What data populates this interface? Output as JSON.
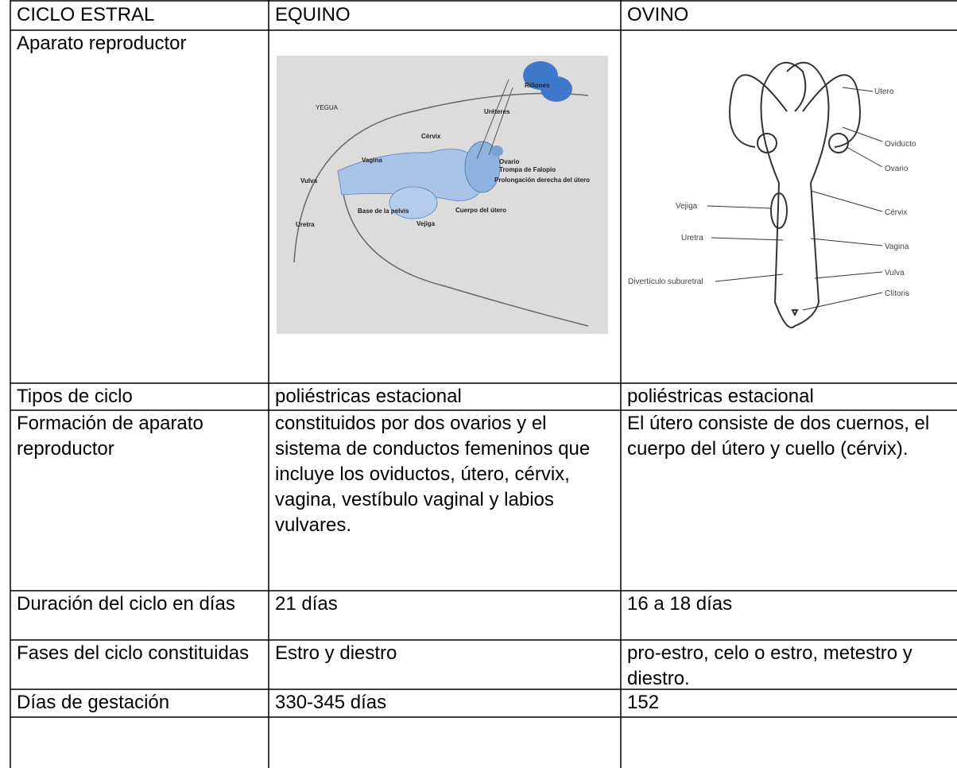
{
  "table": {
    "header": [
      "CICLO ESTRAL",
      "EQUINO",
      "OVINO"
    ],
    "rows": [
      [
        "Aparato reproductor"
      ],
      [
        "Tipos de ciclo",
        "poliéstricas estacional",
        "poliéstricas estacional"
      ],
      [
        "Formación de aparato reproductor",
        "constituidos por dos ovarios y el sistema de conductos femeninos que incluye los oviductos, útero, cérvix, vagina, vestíbulo vaginal y labios vulvares.",
        "El útero consiste de dos cuernos, el cuerpo del útero y cuello (cérvix)."
      ],
      [
        "Duración del ciclo en días",
        "21 días",
        "16 a 18 días"
      ],
      [
        "Fases del ciclo constituidas",
        "Estro y diestro",
        "pro-estro, celo o estro, metestro y diestro."
      ],
      [
        "Días de gestación",
        "330-345 días",
        "152"
      ]
    ]
  },
  "figures": {
    "equino": [
      "YEGUA",
      "Riñones",
      "Uréteres",
      "Cérvix",
      "Vagina",
      "Ovario",
      "Trompa de Falopio",
      "Prolongación derecha del útero",
      "Vulva",
      "Cuerpo del útero",
      "Base de la pelvis",
      "Uretra",
      "Vejiga"
    ],
    "ovino": [
      "Utero",
      "Oviducto",
      "Ovario",
      "Vejiga",
      "Cérvix",
      "Uretra",
      "Vagina",
      "Vulva",
      "Divertículo suburetral",
      "Clítoris"
    ]
  }
}
